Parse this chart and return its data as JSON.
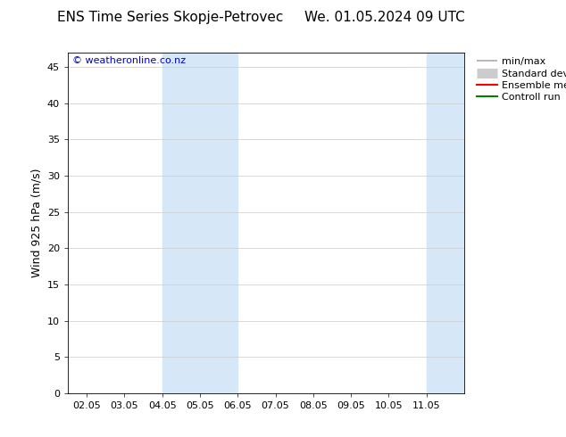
{
  "title_left": "ENS Time Series Skopje-Petrovec",
  "title_right": "We. 01.05.2024 09 UTC",
  "ylabel": "Wind 925 hPa (m/s)",
  "watermark": "© weatheronline.co.nz",
  "xlim_left": 1.5,
  "xlim_right": 12.0,
  "ylim_bottom": 0,
  "ylim_top": 47,
  "yticks": [
    0,
    5,
    10,
    15,
    20,
    25,
    30,
    35,
    40,
    45
  ],
  "xtick_labels": [
    "02.05",
    "03.05",
    "04.05",
    "05.05",
    "06.05",
    "07.05",
    "08.05",
    "09.05",
    "10.05",
    "11.05"
  ],
  "xtick_positions": [
    2,
    3,
    4,
    5,
    6,
    7,
    8,
    9,
    10,
    11
  ],
  "shaded_bands": [
    {
      "x_start": 4.0,
      "x_end": 5.0,
      "color": "#d6e8f7"
    },
    {
      "x_start": 5.0,
      "x_end": 6.0,
      "color": "#d6e8f7"
    },
    {
      "x_start": 11.0,
      "x_end": 12.0,
      "color": "#d6e8f7"
    }
  ],
  "background_color": "#ffffff",
  "plot_bg_color": "#ffffff",
  "border_color": "#000000",
  "grid_color": "#cccccc",
  "legend_items": [
    {
      "label": "min/max",
      "color": "#aaaaaa",
      "lw": 1.2,
      "style": "minmax"
    },
    {
      "label": "Standard deviation",
      "color": "#cccccc",
      "lw": 8,
      "style": "band"
    },
    {
      "label": "Ensemble mean run",
      "color": "#ff0000",
      "lw": 1.5,
      "style": "line"
    },
    {
      "label": "Controll run",
      "color": "#008000",
      "lw": 1.5,
      "style": "line"
    }
  ],
  "title_fontsize": 11,
  "label_fontsize": 9,
  "tick_fontsize": 8,
  "legend_fontsize": 8,
  "watermark_color": "#0000cc",
  "watermark_fontsize": 8
}
